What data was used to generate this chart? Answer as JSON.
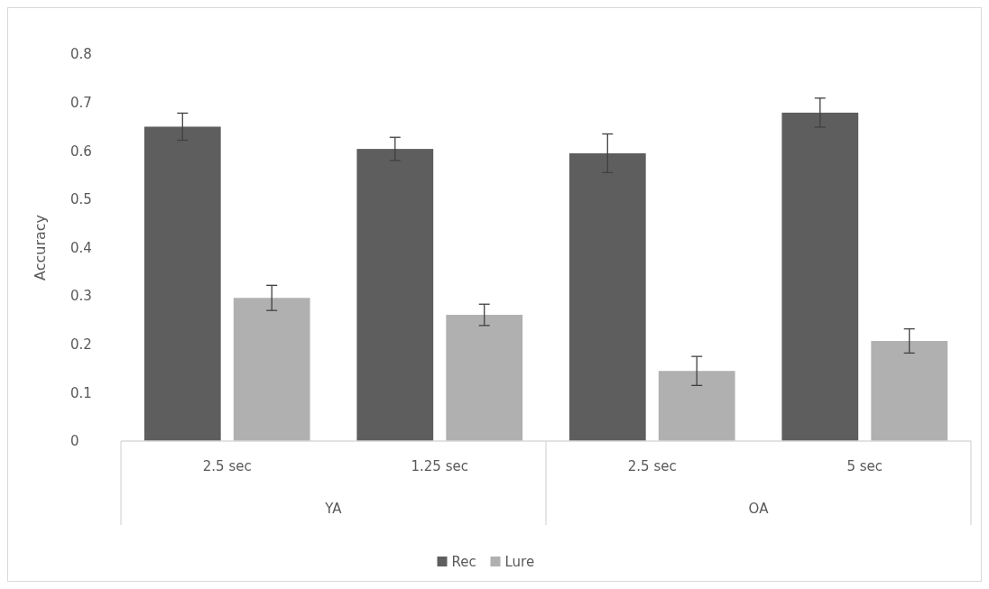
{
  "chart_data": {
    "type": "bar",
    "ylabel": "Accuracy",
    "categories": [
      "2.5 sec",
      "1.25 sec",
      "2.5 sec",
      "5 sec"
    ],
    "annotations": [
      "YA",
      "OA"
    ],
    "series": [
      {
        "name": "Rec",
        "color": "#5e5e5e",
        "values": [
          0.65,
          0.604,
          0.595,
          0.679
        ],
        "errors": [
          0.028,
          0.024,
          0.04,
          0.03
        ]
      },
      {
        "name": "Lure",
        "color": "#b0b0b0",
        "values": [
          0.296,
          0.261,
          0.145,
          0.207
        ],
        "errors": [
          0.026,
          0.022,
          0.03,
          0.025
        ]
      }
    ],
    "ylim": [
      0,
      0.8
    ],
    "yticks": [
      0,
      0.1,
      0.2,
      0.3,
      0.4,
      0.5,
      0.6,
      0.7,
      0.8
    ],
    "grid": false,
    "legend": "bottom"
  }
}
